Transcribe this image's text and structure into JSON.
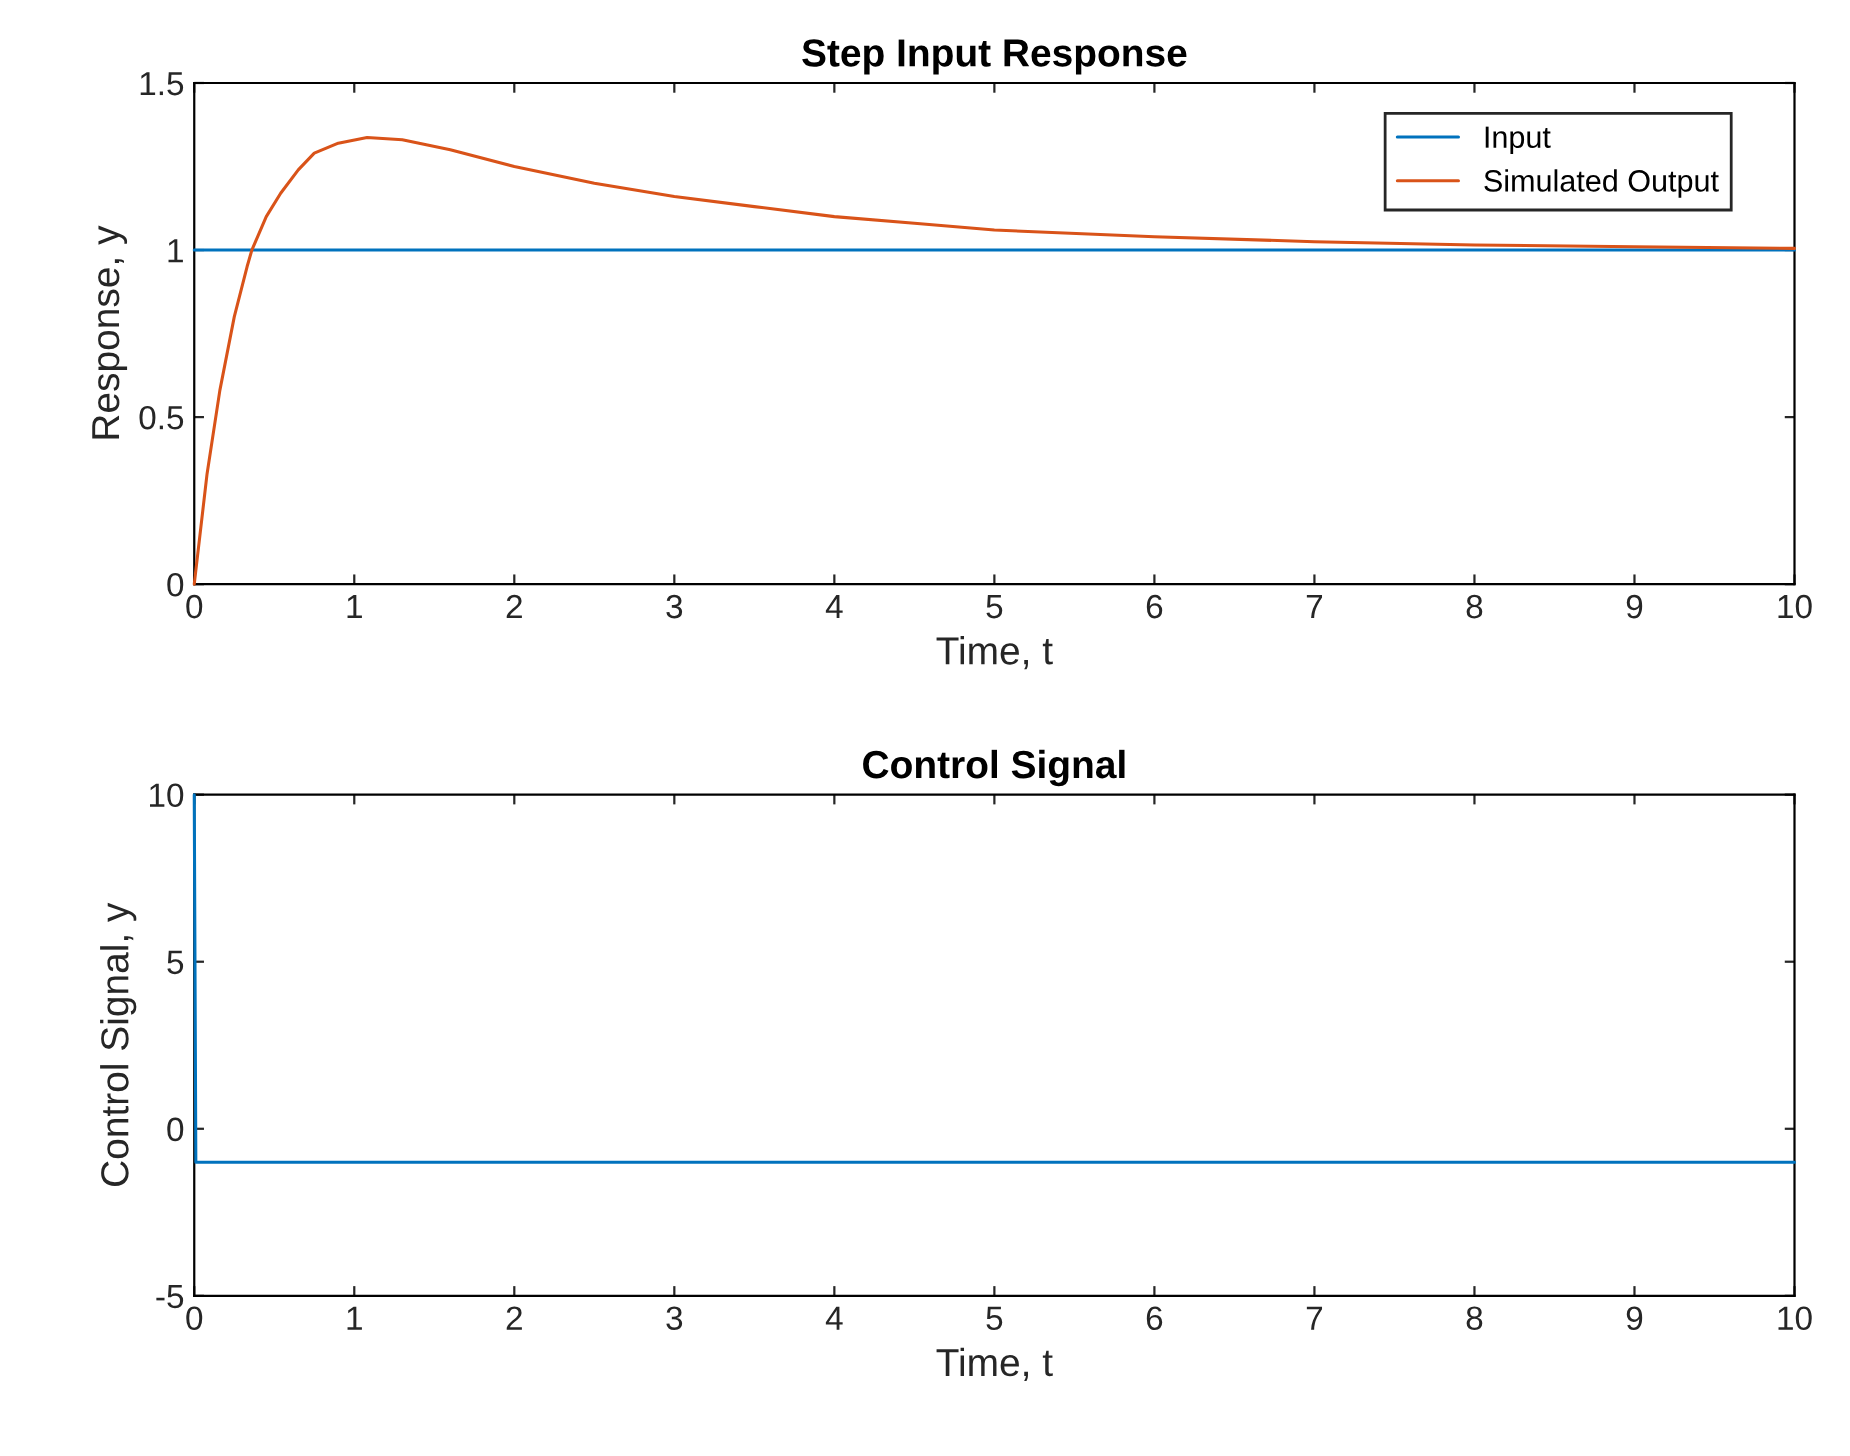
{
  "chart_data": [
    {
      "type": "line",
      "title": "Step Input Response",
      "xlabel": "Time, t",
      "ylabel": "Response, y",
      "xlim": [
        0,
        10
      ],
      "ylim": [
        0,
        1.5
      ],
      "xticks": [
        0,
        1,
        2,
        3,
        4,
        5,
        6,
        7,
        8,
        9,
        10
      ],
      "yticks": [
        0,
        0.5,
        1,
        1.5
      ],
      "grid": false,
      "legend": "top right",
      "series": [
        {
          "name": "Input",
          "color": "#0072bd",
          "x": [
            0,
            10
          ],
          "values": [
            1,
            1
          ]
        },
        {
          "name": "Simulated Output",
          "color": "#d95319",
          "x": [
            0,
            0.08,
            0.16,
            0.25,
            0.33,
            0.36,
            0.45,
            0.54,
            0.65,
            0.75,
            0.9,
            1.08,
            1.3,
            1.6,
            2,
            2.5,
            3,
            3.5,
            4,
            4.5,
            5,
            6,
            7,
            8,
            9,
            10
          ],
          "values": [
            0,
            0.33,
            0.58,
            0.8,
            0.95,
            1.0,
            1.1,
            1.17,
            1.24,
            1.29,
            1.32,
            1.337,
            1.33,
            1.3,
            1.25,
            1.2,
            1.16,
            1.13,
            1.1,
            1.08,
            1.06,
            1.04,
            1.025,
            1.015,
            1.01,
            1.005
          ]
        }
      ]
    },
    {
      "type": "line",
      "title": "Control Signal",
      "xlabel": "Time, t",
      "ylabel": "Control Signal, y",
      "xlim": [
        0,
        10
      ],
      "ylim": [
        -5,
        10
      ],
      "xticks": [
        0,
        1,
        2,
        3,
        4,
        5,
        6,
        7,
        8,
        9,
        10
      ],
      "yticks": [
        -5,
        0,
        5,
        10
      ],
      "grid": false,
      "series": [
        {
          "color": "#0072bd",
          "x": [
            0,
            0.01,
            10
          ],
          "values": [
            10,
            -1,
            -1
          ]
        }
      ]
    }
  ]
}
